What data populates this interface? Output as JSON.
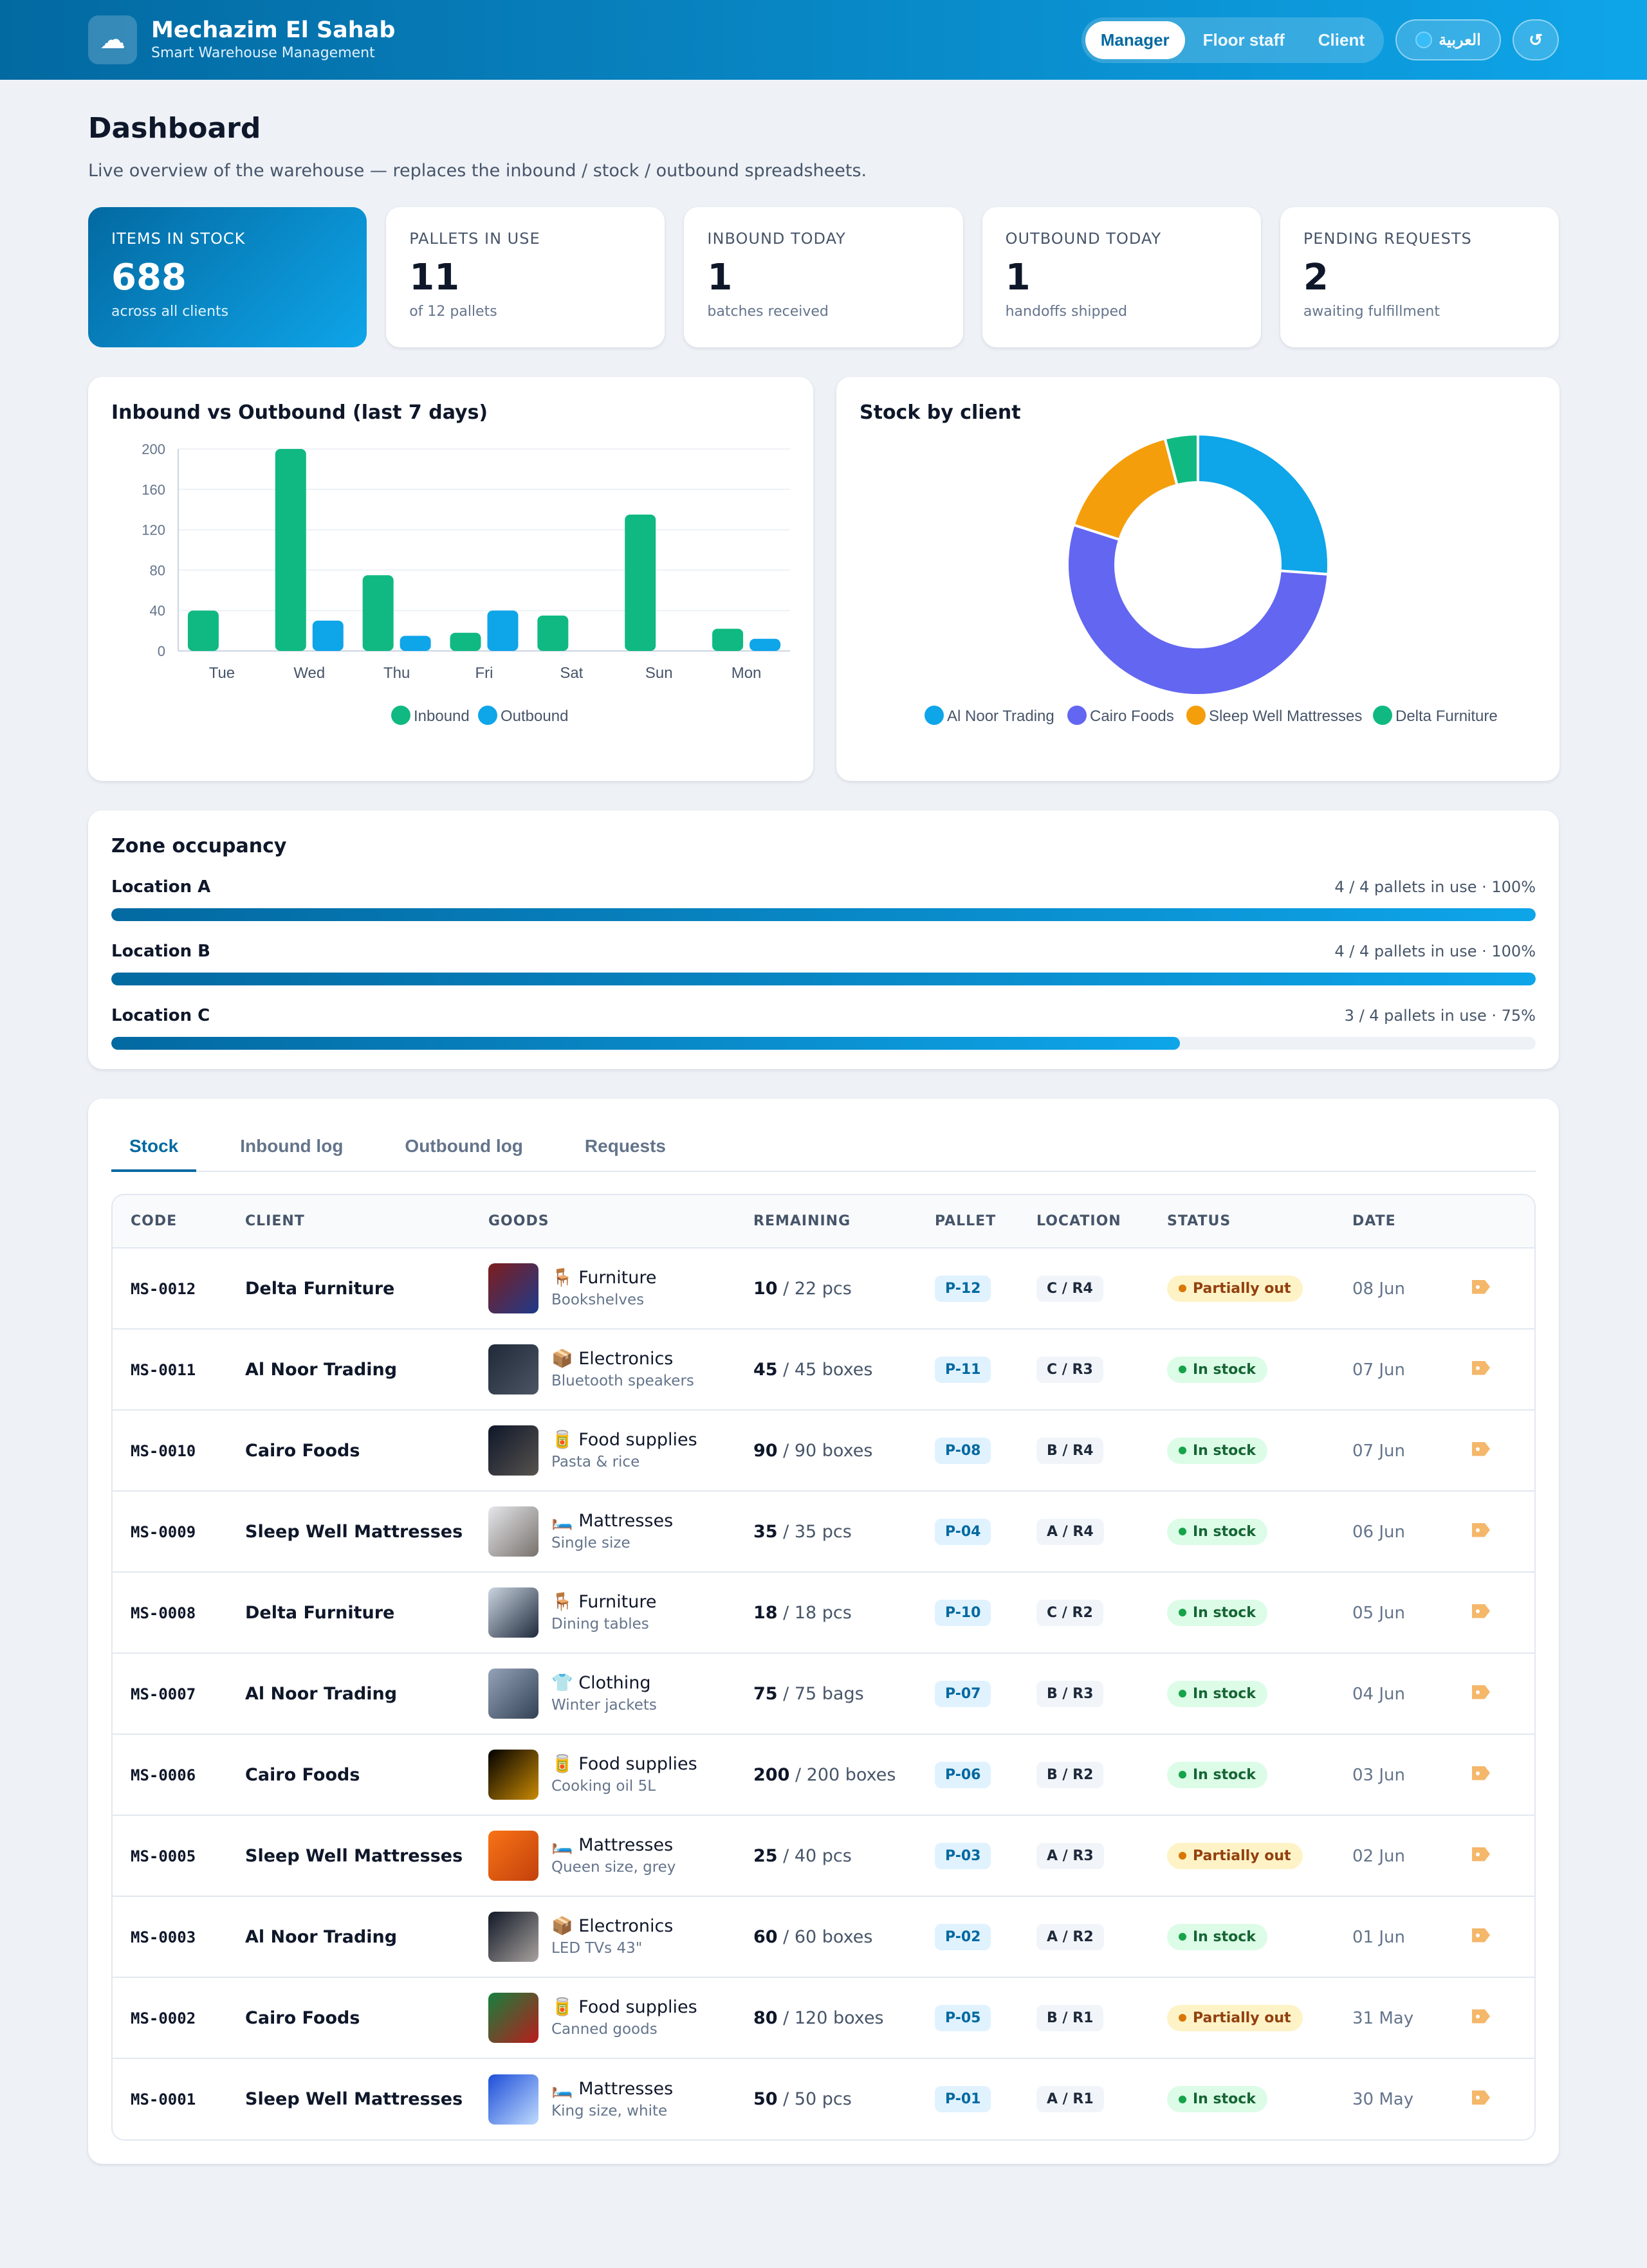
{
  "header": {
    "title": "Mechazim El Sahab",
    "subtitle": "Smart Warehouse Management",
    "roles": [
      "Manager",
      "Floor staff",
      "Client"
    ],
    "active_role": "Manager",
    "lang_label": "العربية",
    "refresh_label": "↺"
  },
  "page": {
    "title": "Dashboard",
    "subtitle": "Live overview of the warehouse — replaces the inbound / stock / outbound spreadsheets."
  },
  "stats": [
    {
      "label": "ITEMS IN STOCK",
      "value": "688",
      "note": "across all clients"
    },
    {
      "label": "PALLETS IN USE",
      "value": "11",
      "note": "of 12 pallets"
    },
    {
      "label": "INBOUND TODAY",
      "value": "1",
      "note": "batches received"
    },
    {
      "label": "OUTBOUND TODAY",
      "value": "1",
      "note": "handoffs shipped"
    },
    {
      "label": "PENDING REQUESTS",
      "value": "2",
      "note": "awaiting fulfillment"
    }
  ],
  "chart_data": [
    {
      "type": "bar",
      "title": "Inbound vs Outbound (last 7 days)",
      "categories": [
        "Tue",
        "Wed",
        "Thu",
        "Fri",
        "Sat",
        "Sun",
        "Mon"
      ],
      "series": [
        {
          "name": "Inbound",
          "values": [
            40,
            200,
            75,
            18,
            35,
            135,
            22
          ],
          "color": "#10b981"
        },
        {
          "name": "Outbound",
          "values": [
            0,
            30,
            15,
            40,
            0,
            0,
            12
          ],
          "color": "#0ea5e9"
        }
      ],
      "ylim": [
        0,
        200
      ],
      "yticks": [
        0,
        40,
        80,
        120,
        160,
        200
      ],
      "grid": true,
      "legend": "bottom"
    },
    {
      "type": "pie",
      "title": "Stock by client",
      "labels": [
        "Al Noor Trading",
        "Cairo Foods",
        "Sleep Well Mattresses",
        "Delta Furniture"
      ],
      "values": [
        180,
        370,
        110,
        28
      ],
      "colors": [
        "#0ea5e9",
        "#6366f1",
        "#f59e0b",
        "#10b981"
      ],
      "donut": true,
      "legend": "bottom"
    }
  ],
  "zones": {
    "title": "Zone occupancy",
    "items": [
      {
        "name": "Location A",
        "info": "4 / 4 pallets in use · 100%",
        "fraction": 1.0
      },
      {
        "name": "Location B",
        "info": "4 / 4 pallets in use · 100%",
        "fraction": 1.0
      },
      {
        "name": "Location C",
        "info": "3 / 4 pallets in use · 75%",
        "fraction": 0.75
      }
    ]
  },
  "tabs": [
    "Stock",
    "Inbound log",
    "Outbound log",
    "Requests"
  ],
  "active_tab": "Stock",
  "table": {
    "columns": [
      "CODE",
      "CLIENT",
      "GOODS",
      "REMAINING",
      "PALLET",
      "LOCATION",
      "STATUS",
      "DATE"
    ],
    "rows": [
      {
        "code": "MS-0012",
        "client": "Delta Furniture",
        "icon": "🪑",
        "category": "Furniture",
        "desc": "Bookshelves",
        "rem": "10",
        "total": "/ 22 pcs",
        "pallet": "P-12",
        "loc": "C / R4",
        "status": "Partially out",
        "state": "part",
        "date": "08 Jun",
        "thumb": [
          "#7f1d1d",
          "#1e3a8a"
        ]
      },
      {
        "code": "MS-0011",
        "client": "Al Noor Trading",
        "icon": "📦",
        "category": "Electronics",
        "desc": "Bluetooth speakers",
        "rem": "45",
        "total": "/ 45 boxes",
        "pallet": "P-11",
        "loc": "C / R3",
        "status": "In stock",
        "state": "in",
        "date": "07 Jun",
        "thumb": [
          "#1f2937",
          "#4b5563"
        ]
      },
      {
        "code": "MS-0010",
        "client": "Cairo Foods",
        "icon": "🥫",
        "category": "Food supplies",
        "desc": "Pasta & rice",
        "rem": "90",
        "total": "/ 90 boxes",
        "pallet": "P-08",
        "loc": "B / R4",
        "status": "In stock",
        "state": "in",
        "date": "07 Jun",
        "thumb": [
          "#0f172a",
          "#57534e"
        ]
      },
      {
        "code": "MS-0009",
        "client": "Sleep Well Mattresses",
        "icon": "🛏️",
        "category": "Mattresses",
        "desc": "Single size",
        "rem": "35",
        "total": "/ 35 pcs",
        "pallet": "P-04",
        "loc": "A / R4",
        "status": "In stock",
        "state": "in",
        "date": "06 Jun",
        "thumb": [
          "#e5e7eb",
          "#78716c"
        ]
      },
      {
        "code": "MS-0008",
        "client": "Delta Furniture",
        "icon": "🪑",
        "category": "Furniture",
        "desc": "Dining tables",
        "rem": "18",
        "total": "/ 18 pcs",
        "pallet": "P-10",
        "loc": "C / R2",
        "status": "In stock",
        "state": "in",
        "date": "05 Jun",
        "thumb": [
          "#cbd5e1",
          "#1e293b"
        ]
      },
      {
        "code": "MS-0007",
        "client": "Al Noor Trading",
        "icon": "👕",
        "category": "Clothing",
        "desc": "Winter jackets",
        "rem": "75",
        "total": "/ 75 bags",
        "pallet": "P-07",
        "loc": "B / R3",
        "status": "In stock",
        "state": "in",
        "date": "04 Jun",
        "thumb": [
          "#94a3b8",
          "#334155"
        ]
      },
      {
        "code": "MS-0006",
        "client": "Cairo Foods",
        "icon": "🥫",
        "category": "Food supplies",
        "desc": "Cooking oil 5L",
        "rem": "200",
        "total": "/ 200 boxes",
        "pallet": "P-06",
        "loc": "B / R2",
        "status": "In stock",
        "state": "in",
        "date": "03 Jun",
        "thumb": [
          "#000000",
          "#ca8a04"
        ]
      },
      {
        "code": "MS-0005",
        "client": "Sleep Well Mattresses",
        "icon": "🛏️",
        "category": "Mattresses",
        "desc": "Queen size, grey",
        "rem": "25",
        "total": "/ 40 pcs",
        "pallet": "P-03",
        "loc": "A / R3",
        "status": "Partially out",
        "state": "part",
        "date": "02 Jun",
        "thumb": [
          "#f97316",
          "#c2410c"
        ]
      },
      {
        "code": "MS-0003",
        "client": "Al Noor Trading",
        "icon": "📦",
        "category": "Electronics",
        "desc": "LED TVs 43\"",
        "rem": "60",
        "total": "/ 60 boxes",
        "pallet": "P-02",
        "loc": "A / R2",
        "status": "In stock",
        "state": "in",
        "date": "01 Jun",
        "thumb": [
          "#111827",
          "#a8a29e"
        ]
      },
      {
        "code": "MS-0002",
        "client": "Cairo Foods",
        "icon": "🥫",
        "category": "Food supplies",
        "desc": "Canned goods",
        "rem": "80",
        "total": "/ 120 boxes",
        "pallet": "P-05",
        "loc": "B / R1",
        "status": "Partially out",
        "state": "part",
        "date": "31 May",
        "thumb": [
          "#15803d",
          "#b91c1c"
        ]
      },
      {
        "code": "MS-0001",
        "client": "Sleep Well Mattresses",
        "icon": "🛏️",
        "category": "Mattresses",
        "desc": "King size, white",
        "rem": "50",
        "total": "/ 50 pcs",
        "pallet": "P-01",
        "loc": "A / R1",
        "status": "In stock",
        "state": "in",
        "date": "30 May",
        "thumb": [
          "#1d4ed8",
          "#bfdbfe"
        ]
      }
    ]
  }
}
